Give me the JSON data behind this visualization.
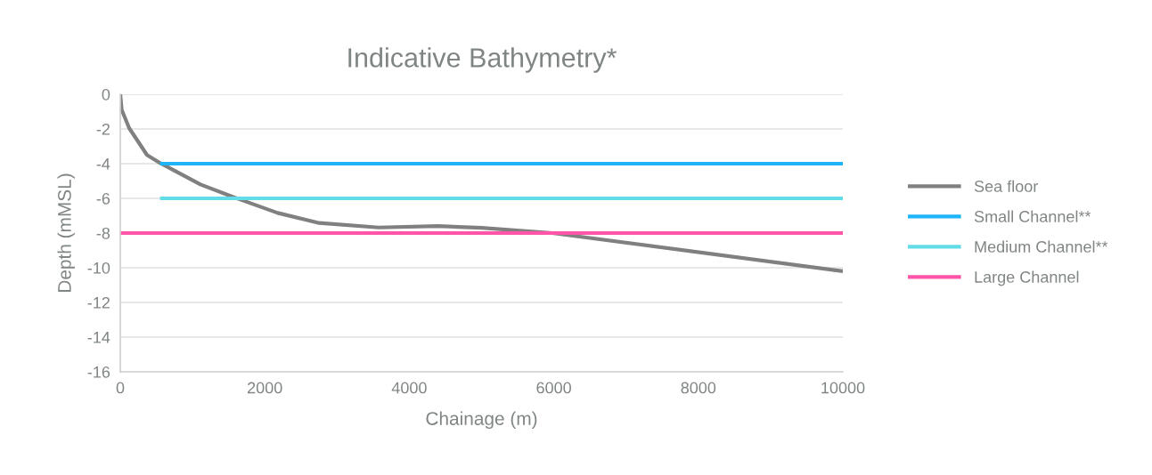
{
  "chart_data": {
    "type": "line",
    "title": "Indicative Bathymetry*",
    "xlabel": "Chainage (m)",
    "ylabel": "Depth (mMSL)",
    "series": [
      {
        "name": "Sea floor",
        "color": "#808080",
        "x": [
          0,
          20,
          123,
          370,
          555,
          1110,
          1603,
          2178,
          2753,
          3576,
          4398,
          5000,
          5980,
          10000
        ],
        "values": [
          0,
          -0.9,
          -1.95,
          -3.5,
          -3.97,
          -5.2,
          -5.98,
          -6.84,
          -7.42,
          -7.68,
          -7.6,
          -7.7,
          -8.0,
          -10.2
        ]
      },
      {
        "name": "Small Channel**",
        "color": "#1eb4fa",
        "x": [
          550,
          10000
        ],
        "values": [
          -4,
          -4
        ]
      },
      {
        "name": "Medium Channel**",
        "color": "#62dde8",
        "x": [
          550,
          10000
        ],
        "values": [
          -6,
          -6
        ]
      },
      {
        "name": "Large Channel",
        "color": "#ff55a8",
        "x": [
          0,
          10000
        ],
        "values": [
          -8,
          -8
        ]
      }
    ],
    "xlim": [
      0,
      10000
    ],
    "xticks": [
      0,
      2000,
      4000,
      6000,
      8000,
      10000
    ],
    "ylim": [
      -16,
      0
    ],
    "yticks": [
      -16,
      -14,
      -12,
      -10,
      -8,
      -6,
      -4,
      -2,
      0
    ],
    "grid": "y",
    "legend": "right",
    "marker": "none",
    "line_style": "solid"
  }
}
